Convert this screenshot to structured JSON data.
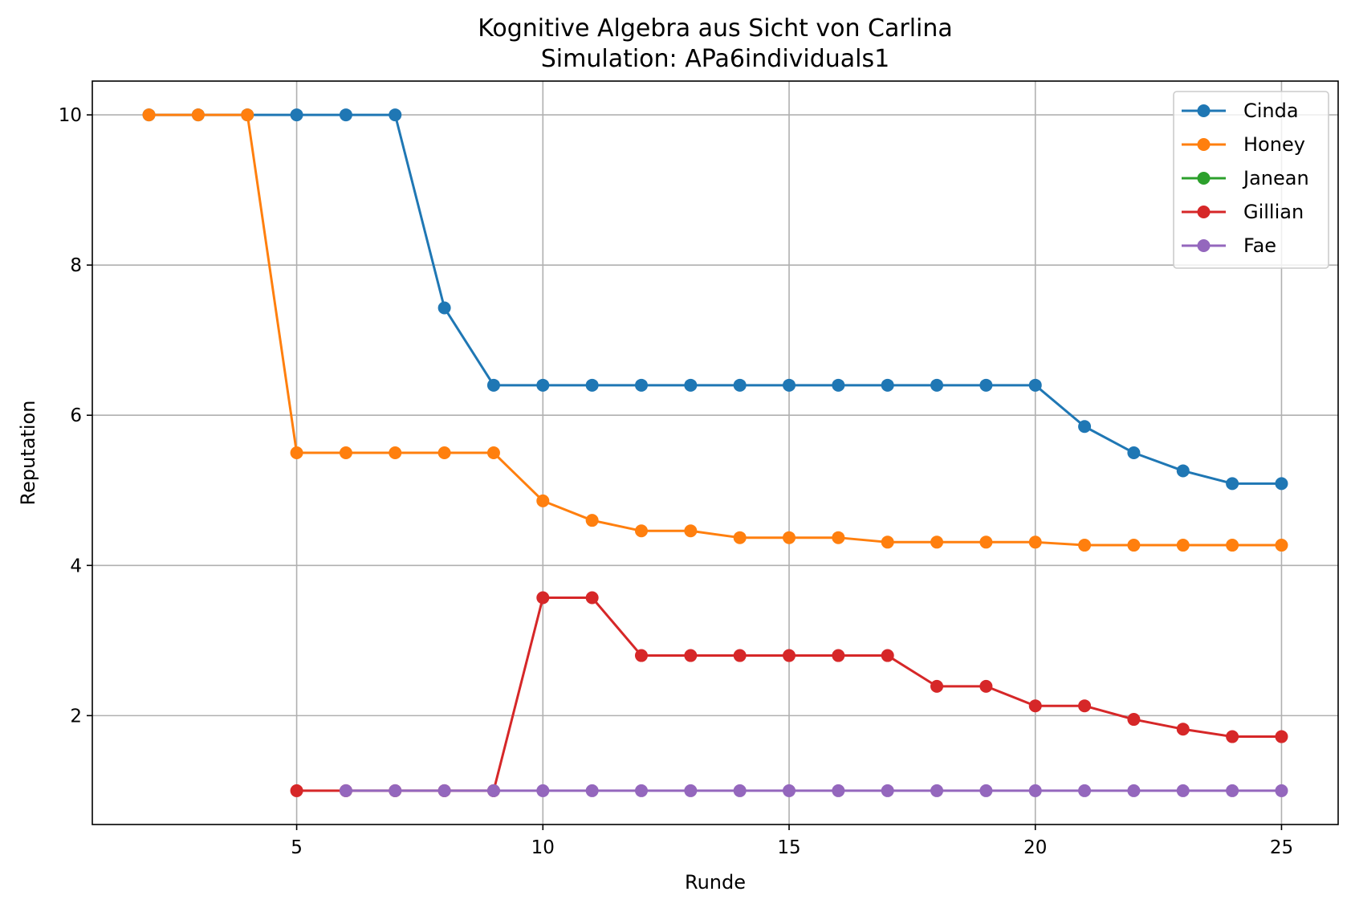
{
  "chart_data": {
    "type": "line",
    "title": "Kognitive Algebra aus Sicht von Carlina",
    "subtitle": "Simulation: APa6individuals1",
    "xlabel": "Runde",
    "ylabel": "Reputation",
    "xlim": [
      0.85,
      26.15
    ],
    "ylim": [
      0.55,
      10.45
    ],
    "xticks": [
      5,
      10,
      15,
      20,
      25
    ],
    "yticks": [
      2,
      4,
      6,
      8,
      10
    ],
    "grid": true,
    "legend_position": "top-right",
    "series": [
      {
        "name": "Cinda",
        "color": "#1f77b4",
        "points": [
          [
            2,
            10
          ],
          [
            3,
            10
          ],
          [
            4,
            10
          ],
          [
            5,
            10
          ],
          [
            6,
            10
          ],
          [
            7,
            10
          ],
          [
            8,
            7.43
          ],
          [
            9,
            6.4
          ],
          [
            10,
            6.4
          ],
          [
            11,
            6.4
          ],
          [
            12,
            6.4
          ],
          [
            13,
            6.4
          ],
          [
            14,
            6.4
          ],
          [
            15,
            6.4
          ],
          [
            16,
            6.4
          ],
          [
            17,
            6.4
          ],
          [
            18,
            6.4
          ],
          [
            19,
            6.4
          ],
          [
            20,
            6.4
          ],
          [
            21,
            5.85
          ],
          [
            22,
            5.5
          ],
          [
            23,
            5.26
          ],
          [
            24,
            5.09
          ],
          [
            25,
            5.09
          ]
        ]
      },
      {
        "name": "Honey",
        "color": "#ff7f0e",
        "points": [
          [
            2,
            10
          ],
          [
            3,
            10
          ],
          [
            4,
            10
          ],
          [
            5,
            5.5
          ],
          [
            6,
            5.5
          ],
          [
            7,
            5.5
          ],
          [
            8,
            5.5
          ],
          [
            9,
            5.5
          ],
          [
            10,
            4.86
          ],
          [
            11,
            4.6
          ],
          [
            12,
            4.46
          ],
          [
            13,
            4.46
          ],
          [
            14,
            4.37
          ],
          [
            15,
            4.37
          ],
          [
            16,
            4.37
          ],
          [
            17,
            4.31
          ],
          [
            18,
            4.31
          ],
          [
            19,
            4.31
          ],
          [
            20,
            4.31
          ],
          [
            21,
            4.27
          ],
          [
            22,
            4.27
          ],
          [
            23,
            4.27
          ],
          [
            24,
            4.27
          ],
          [
            25,
            4.27
          ]
        ]
      },
      {
        "name": "Janean",
        "color": "#2ca02c",
        "points": []
      },
      {
        "name": "Gillian",
        "color": "#d62728",
        "points": [
          [
            5,
            1
          ],
          [
            6,
            1
          ],
          [
            7,
            1
          ],
          [
            8,
            1
          ],
          [
            9,
            1
          ],
          [
            10,
            3.57
          ],
          [
            11,
            3.57
          ],
          [
            12,
            2.8
          ],
          [
            13,
            2.8
          ],
          [
            14,
            2.8
          ],
          [
            15,
            2.8
          ],
          [
            16,
            2.8
          ],
          [
            17,
            2.8
          ],
          [
            18,
            2.39
          ],
          [
            19,
            2.39
          ],
          [
            20,
            2.13
          ],
          [
            21,
            2.13
          ],
          [
            22,
            1.95
          ],
          [
            23,
            1.82
          ],
          [
            24,
            1.72
          ],
          [
            25,
            1.72
          ]
        ]
      },
      {
        "name": "Fae",
        "color": "#9467bd",
        "points": [
          [
            6,
            1
          ],
          [
            7,
            1
          ],
          [
            8,
            1
          ],
          [
            9,
            1
          ],
          [
            10,
            1
          ],
          [
            11,
            1
          ],
          [
            12,
            1
          ],
          [
            13,
            1
          ],
          [
            14,
            1
          ],
          [
            15,
            1
          ],
          [
            16,
            1
          ],
          [
            17,
            1
          ],
          [
            18,
            1
          ],
          [
            19,
            1
          ],
          [
            20,
            1
          ],
          [
            21,
            1
          ],
          [
            22,
            1
          ],
          [
            23,
            1
          ],
          [
            24,
            1
          ],
          [
            25,
            1
          ]
        ]
      }
    ]
  }
}
